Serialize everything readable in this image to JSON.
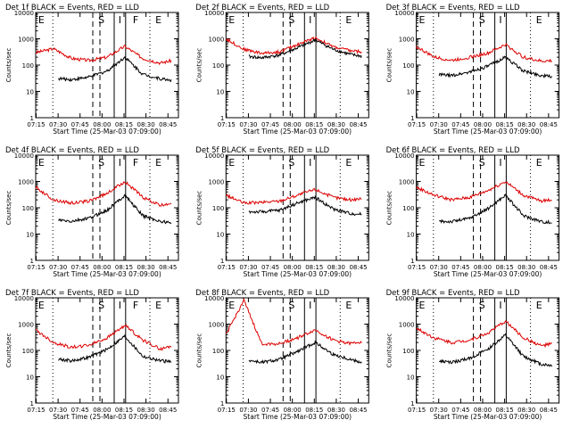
{
  "chart_data": [
    {
      "type": "line",
      "title": "Det 1f BLACK = Events, RED = LLD",
      "xlabel": "Start Time (25-Mar-03 07:09:00)",
      "ylabel": "Counts/sec",
      "y_log": true,
      "ylim": [
        1,
        10000
      ],
      "x_ticks": [
        "07:15",
        "07:30",
        "07:45",
        "08:00",
        "08:15",
        "08:30",
        "08:45"
      ],
      "y_ticks": [
        "1",
        "10",
        "100",
        "1000",
        "10000"
      ],
      "region_labels": [
        "E",
        "S",
        "I",
        "F",
        "E"
      ],
      "series": [
        {
          "name": "RED = LLD",
          "color": "#dd0000",
          "values": [
            300,
            420,
            180,
            150,
            200,
            520,
            180,
            120,
            170
          ]
        },
        {
          "name": "BLACK = Events",
          "color": "#000000",
          "values": [
            40,
            32,
            28,
            35,
            60,
            200,
            45,
            30,
            25
          ]
        }
      ]
    },
    {
      "type": "line",
      "title": "Det 2f BLACK = Events, RED = LLD",
      "xlabel": "Start Time (25-Mar-03 07:09:00)",
      "ylabel": "Counts/sec",
      "y_log": true,
      "ylim": [
        1,
        10000
      ],
      "x_ticks": [
        "07:15",
        "07:30",
        "07:45",
        "08:00",
        "08:15",
        "08:30",
        "08:45"
      ],
      "y_ticks": [
        "1",
        "10",
        "100",
        "1000",
        "10000"
      ],
      "region_labels": [
        "E",
        "S",
        "I",
        "E"
      ],
      "series": [
        {
          "name": "RED = LLD",
          "color": "#dd0000",
          "values": [
            1000,
            400,
            280,
            320,
            600,
            1100,
            500,
            350,
            300
          ]
        },
        {
          "name": "BLACK = Events",
          "color": "#000000",
          "values": [
            220,
            220,
            190,
            240,
            450,
            900,
            400,
            250,
            200
          ]
        }
      ]
    },
    {
      "type": "line",
      "title": "Det 3f BLACK = Events, RED = LLD",
      "xlabel": "Start Time (25-Mar-03 07:09:00)",
      "ylabel": "Counts/sec",
      "y_log": true,
      "ylim": [
        1,
        10000
      ],
      "x_ticks": [
        "07:15",
        "07:30",
        "07:45",
        "08:00",
        "08:15",
        "08:30",
        "08:45"
      ],
      "y_ticks": [
        "1",
        "10",
        "100",
        "1000",
        "10000"
      ],
      "region_labels": [
        "E",
        "S",
        "I",
        "E"
      ],
      "series": [
        {
          "name": "RED = LLD",
          "color": "#dd0000",
          "values": [
            500,
            200,
            150,
            200,
            280,
            600,
            200,
            140,
            150
          ]
        },
        {
          "name": "BLACK = Events",
          "color": "#000000",
          "values": [
            50,
            45,
            40,
            55,
            90,
            200,
            60,
            40,
            35
          ]
        }
      ]
    },
    {
      "type": "line",
      "title": "Det 4f BLACK = Events, RED = LLD",
      "xlabel": "Start Time (25-Mar-03 07:09:00)",
      "ylabel": "Counts/sec",
      "y_log": true,
      "ylim": [
        1,
        10000
      ],
      "x_ticks": [
        "07:15",
        "07:30",
        "07:45",
        "08:00",
        "08:15",
        "08:30",
        "08:45"
      ],
      "y_ticks": [
        "1",
        "10",
        "100",
        "1000",
        "10000"
      ],
      "region_labels": [
        "E",
        "S",
        "I",
        "F",
        "E"
      ],
      "series": [
        {
          "name": "RED = LLD",
          "color": "#dd0000",
          "values": [
            600,
            200,
            150,
            180,
            350,
            1000,
            250,
            120,
            180
          ]
        },
        {
          "name": "BLACK = Events",
          "color": "#000000",
          "values": [
            30,
            35,
            30,
            40,
            80,
            300,
            50,
            30,
            25
          ]
        }
      ]
    },
    {
      "type": "line",
      "title": "Det 5f BLACK = Events, RED = LLD",
      "xlabel": "Start Time (25-Mar-03 07:09:00)",
      "ylabel": "Counts/sec",
      "y_log": true,
      "ylim": [
        1,
        10000
      ],
      "x_ticks": [
        "07:15",
        "07:30",
        "07:45",
        "08:00",
        "08:15",
        "08:30",
        "08:45"
      ],
      "y_ticks": [
        "1",
        "10",
        "100",
        "1000",
        "10000"
      ],
      "region_labels": [
        "E",
        "S",
        "I",
        "E"
      ],
      "series": [
        {
          "name": "RED = LLD",
          "color": "#dd0000",
          "values": [
            300,
            150,
            160,
            180,
            300,
            500,
            250,
            200,
            250
          ]
        },
        {
          "name": "BLACK = Events",
          "color": "#000000",
          "values": [
            60,
            70,
            70,
            80,
            150,
            250,
            90,
            60,
            55
          ]
        }
      ]
    },
    {
      "type": "line",
      "title": "Det 6f BLACK = Events, RED = LLD",
      "xlabel": "Start Time (25-Mar-03 07:09:00)",
      "ylabel": "Counts/sec",
      "y_log": true,
      "ylim": [
        1,
        10000
      ],
      "x_ticks": [
        "07:15",
        "07:30",
        "07:45",
        "08:00",
        "08:15",
        "08:30",
        "08:45"
      ],
      "y_ticks": [
        "1",
        "10",
        "100",
        "1000",
        "10000"
      ],
      "region_labels": [
        "E",
        "S",
        "I",
        "E"
      ],
      "series": [
        {
          "name": "RED = LLD",
          "color": "#dd0000",
          "values": [
            600,
            300,
            200,
            250,
            450,
            1000,
            300,
            180,
            220
          ]
        },
        {
          "name": "BLACK = Events",
          "color": "#000000",
          "values": [
            25,
            30,
            30,
            40,
            90,
            300,
            50,
            30,
            25
          ]
        }
      ]
    },
    {
      "type": "line",
      "title": "Det 7f BLACK = Events, RED = LLD",
      "xlabel": "Start Time (25-Mar-03 07:09:00)",
      "ylabel": "Counts/sec",
      "y_log": true,
      "ylim": [
        1,
        10000
      ],
      "x_ticks": [
        "07:15",
        "07:30",
        "07:45",
        "08:00",
        "08:15",
        "08:30",
        "08:45"
      ],
      "y_ticks": [
        "1",
        "10",
        "100",
        "1000",
        "10000"
      ],
      "region_labels": [
        "E",
        "S",
        "I",
        "F",
        "E"
      ],
      "series": [
        {
          "name": "RED = LLD",
          "color": "#dd0000",
          "values": [
            600,
            200,
            130,
            160,
            300,
            900,
            250,
            110,
            180
          ]
        },
        {
          "name": "BLACK = Events",
          "color": "#000000",
          "values": [
            50,
            50,
            40,
            55,
            110,
            350,
            60,
            40,
            35
          ]
        }
      ]
    },
    {
      "type": "line",
      "title": "Det 8f BLACK = Events, RED = LLD",
      "xlabel": "Start Time (25-Mar-03 07:09:00)",
      "ylabel": "Counts/sec",
      "y_log": true,
      "ylim": [
        1,
        10000
      ],
      "x_ticks": [
        "07:15",
        "07:30",
        "07:45",
        "08:00",
        "08:15",
        "08:30",
        "08:45"
      ],
      "y_ticks": [
        "1",
        "10",
        "100",
        "1000",
        "10000"
      ],
      "region_labels": [
        "E",
        "S",
        "I",
        "E"
      ],
      "series": [
        {
          "name": "RED = LLD",
          "color": "#dd0000",
          "values": [
            400,
            8000,
            180,
            180,
            300,
            600,
            250,
            180,
            250
          ]
        },
        {
          "name": "BLACK = Events",
          "color": "#000000",
          "values": [
            40,
            45,
            35,
            45,
            90,
            200,
            70,
            45,
            30
          ]
        }
      ]
    },
    {
      "type": "line",
      "title": "Det 9f BLACK = Events, RED = LLD",
      "xlabel": "Start Time (25-Mar-03 07:09:00)",
      "ylabel": "Counts/sec",
      "y_log": true,
      "ylim": [
        1,
        10000
      ],
      "x_ticks": [
        "07:15",
        "07:30",
        "07:45",
        "08:00",
        "08:15",
        "08:30",
        "08:45"
      ],
      "y_ticks": [
        "1",
        "10",
        "100",
        "1000",
        "10000"
      ],
      "region_labels": [
        "E",
        "S",
        "I",
        "E"
      ],
      "series": [
        {
          "name": "RED = LLD",
          "color": "#dd0000",
          "values": [
            700,
            300,
            200,
            250,
            450,
            1300,
            300,
            150,
            200
          ]
        },
        {
          "name": "BLACK = Events",
          "color": "#000000",
          "values": [
            25,
            40,
            35,
            50,
            110,
            380,
            60,
            30,
            25
          ]
        }
      ]
    }
  ]
}
